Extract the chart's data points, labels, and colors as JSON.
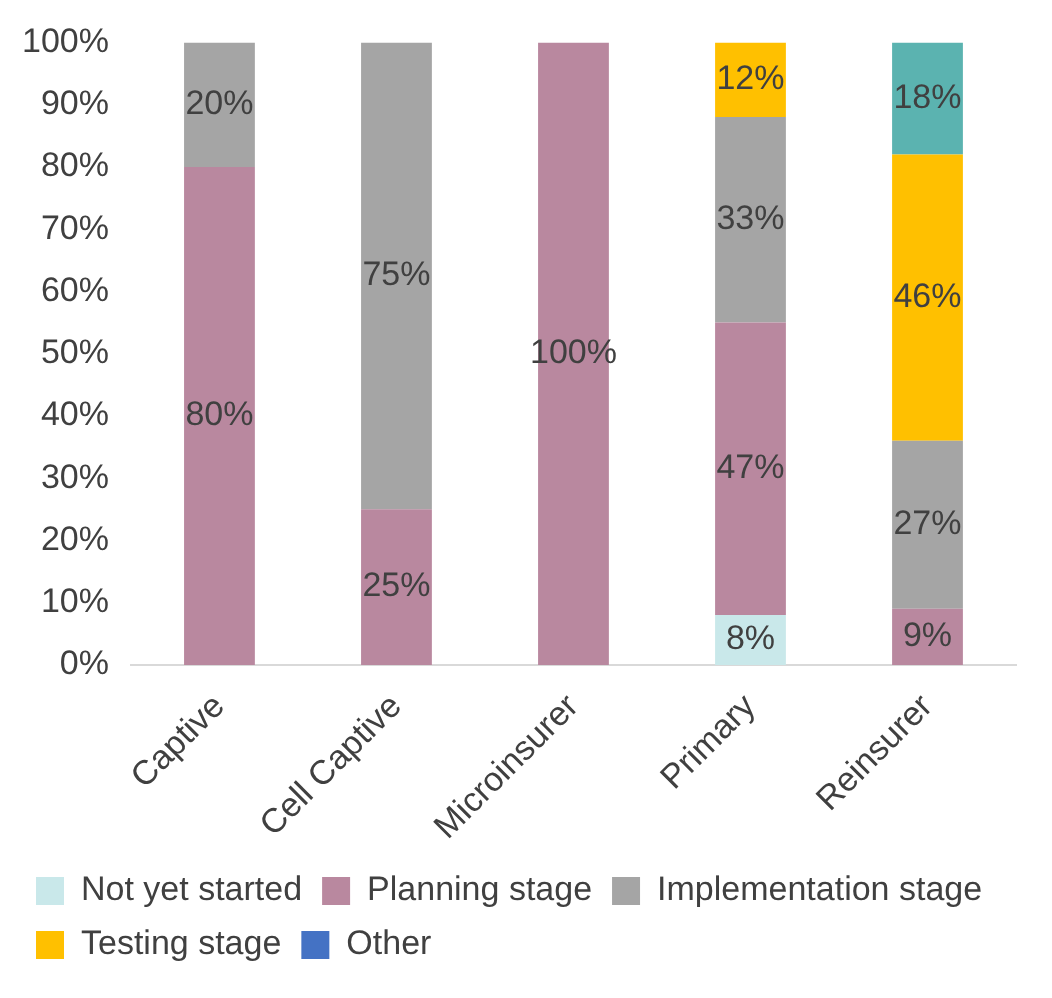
{
  "chart_data": {
    "type": "bar",
    "stacked": true,
    "categories": [
      "Captive",
      "Cell Captive",
      "Microinsurer",
      "Primary",
      "Reinsurer"
    ],
    "series": [
      {
        "name": "Not yet started",
        "color": "#c9e8ea",
        "values": [
          null,
          null,
          null,
          8,
          null
        ],
        "value_labels": [
          null,
          null,
          null,
          "8%",
          null
        ]
      },
      {
        "name": "Planning stage",
        "color": "#b9889f",
        "values": [
          80,
          25,
          100,
          47,
          9
        ],
        "value_labels": [
          "80%",
          "25%",
          "100%",
          "47%",
          "9%"
        ]
      },
      {
        "name": "Implementation stage",
        "color": "#a5a5a5",
        "values": [
          20,
          75,
          null,
          33,
          27
        ],
        "value_labels": [
          "20%",
          "75%",
          null,
          "33%",
          "27%"
        ]
      },
      {
        "name": "Testing stage",
        "color": "#ffc000",
        "values": [
          null,
          null,
          null,
          12,
          46
        ],
        "value_labels": [
          null,
          null,
          null,
          "12%",
          "46%"
        ]
      },
      {
        "name": "Other",
        "color": "#4472c4",
        "values": [
          null,
          null,
          null,
          null,
          null
        ]
      },
      {
        "color": "#5bb3b0",
        "values": [
          null,
          null,
          null,
          null,
          18
        ],
        "value_labels": [
          null,
          null,
          null,
          null,
          "18%"
        ]
      }
    ],
    "ylim": [
      0,
      100
    ],
    "yticks": [
      {
        "value": 0,
        "label": "0%"
      },
      {
        "value": 10,
        "label": "10%"
      },
      {
        "value": 20,
        "label": "20%"
      },
      {
        "value": 30,
        "label": "30%"
      },
      {
        "value": 40,
        "label": "40%"
      },
      {
        "value": 50,
        "label": "50%"
      },
      {
        "value": 60,
        "label": "60%"
      },
      {
        "value": 70,
        "label": "70%"
      },
      {
        "value": 80,
        "label": "80%"
      },
      {
        "value": 90,
        "label": "90%"
      },
      {
        "value": 100,
        "label": "100%"
      }
    ],
    "grid": false,
    "legend": "bottom"
  }
}
